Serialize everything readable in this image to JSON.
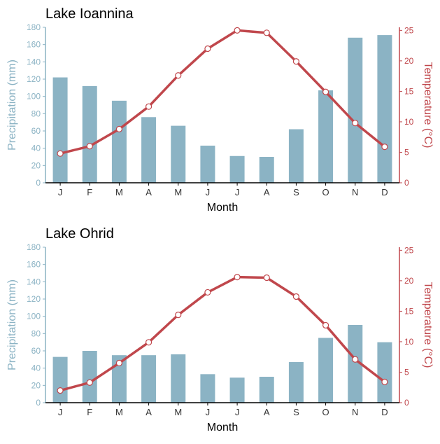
{
  "colors": {
    "bar": "#8bb3c4",
    "line": "#c0474c",
    "left_axis": "#8bb3c4",
    "right_axis": "#c0474c",
    "text": "#222222",
    "axis_line": "#000000"
  },
  "chart_data": [
    {
      "type": "bar+line",
      "title": "Lake Ioannina",
      "xlabel": "Month",
      "ylabel_left": "Precipitation (mm)",
      "ylabel_right": "Temperature (°C)",
      "categories": [
        "J",
        "F",
        "M",
        "A",
        "M",
        "J",
        "J",
        "A",
        "S",
        "O",
        "N",
        "D"
      ],
      "ylim_left": [
        0,
        180
      ],
      "yticks_left": [
        "0",
        "20",
        "40",
        "60",
        "80",
        "100",
        "120",
        "140",
        "160",
        "180"
      ],
      "ylim_right": [
        0,
        25.5
      ],
      "yticks_right": [
        "0",
        "5",
        "10",
        "15",
        "20",
        "25"
      ],
      "series": [
        {
          "name": "Precipitation",
          "type": "bar",
          "axis": "left",
          "values": [
            122,
            112,
            95,
            76,
            66,
            43,
            31,
            30,
            62,
            107,
            168,
            171
          ]
        },
        {
          "name": "Temperature",
          "type": "line",
          "axis": "right",
          "values": [
            4.8,
            6.0,
            8.8,
            12.5,
            17.6,
            22.0,
            25.0,
            24.6,
            19.9,
            14.9,
            9.8,
            5.9
          ]
        }
      ],
      "grid": false
    },
    {
      "type": "bar+line",
      "title": "Lake Ohrid",
      "xlabel": "Month",
      "ylabel_left": "Precipitation (mm)",
      "ylabel_right": "Temperature (°C)",
      "categories": [
        "J",
        "F",
        "M",
        "A",
        "M",
        "J",
        "J",
        "A",
        "S",
        "O",
        "N",
        "D"
      ],
      "ylim_left": [
        0,
        180
      ],
      "yticks_left": [
        "0",
        "20",
        "40",
        "60",
        "80",
        "100",
        "120",
        "140",
        "160",
        "180"
      ],
      "ylim_right": [
        0,
        25.5
      ],
      "yticks_right": [
        "0",
        "5",
        "10",
        "15",
        "20",
        "25"
      ],
      "series": [
        {
          "name": "Precipitation",
          "type": "bar",
          "axis": "left",
          "values": [
            53,
            60,
            55,
            55,
            56,
            33,
            29,
            30,
            47,
            75,
            90,
            70
          ]
        },
        {
          "name": "Temperature",
          "type": "line",
          "axis": "right",
          "values": [
            2.0,
            3.3,
            6.5,
            9.9,
            14.4,
            18.1,
            20.6,
            20.5,
            17.4,
            12.7,
            7.1,
            3.4
          ]
        }
      ],
      "grid": false
    }
  ]
}
